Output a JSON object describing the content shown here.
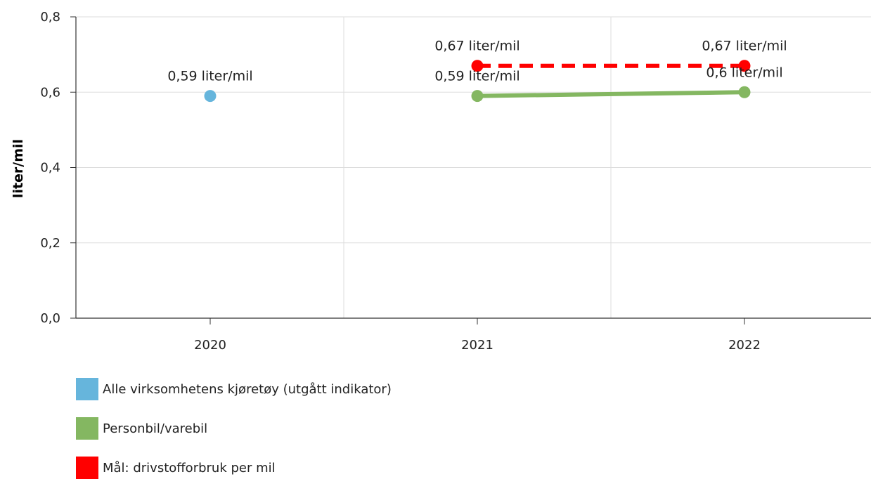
{
  "chart_data": {
    "type": "line",
    "title": "",
    "xlabel": "",
    "ylabel": "liter/mil",
    "categories": [
      "2020",
      "2021",
      "2022"
    ],
    "ylim": [
      0,
      0.8
    ],
    "yticks": [
      "0,0",
      "0,2",
      "0,4",
      "0,6",
      "0,8"
    ],
    "grid": true,
    "legend_position": "bottom-left",
    "series": [
      {
        "name": "Alle virksomhetens kjøretøy (utgått indikator)",
        "color": "#66b5dc",
        "style": "marker-only",
        "values": [
          0.59,
          null,
          null
        ],
        "labels": [
          "0,59 liter/mil",
          null,
          null
        ]
      },
      {
        "name": "Personbil/varebil",
        "color": "#84b761",
        "style": "solid",
        "values": [
          null,
          0.59,
          0.6
        ],
        "labels": [
          null,
          "0,59 liter/mil",
          "0,6 liter/mil"
        ]
      },
      {
        "name": "Mål: drivstofforbruk per mil",
        "color": "#ff0000",
        "style": "dashed",
        "values": [
          null,
          0.67,
          0.67
        ],
        "labels": [
          null,
          "0,67 liter/mil",
          "0,67 liter/mil"
        ]
      }
    ]
  }
}
